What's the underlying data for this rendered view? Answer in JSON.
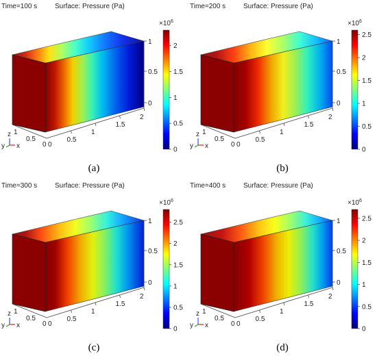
{
  "figure_title": "",
  "panels": [
    {
      "id": "a",
      "time_label": "Time=100 s",
      "surface_label": "Surface: Pressure (Pa)",
      "label": "(a)",
      "scale_exp": "×10",
      "scale_sup": "6",
      "cmax": 2.3,
      "cb_ticks": [
        "2",
        "1.5",
        "1",
        "0.5",
        "0"
      ],
      "cb_tick_vals": [
        2,
        1.5,
        1,
        0.5,
        0
      ],
      "front_color": "#8b0000",
      "profile": "a"
    },
    {
      "id": "b",
      "time_label": "Time=200 s",
      "surface_label": "Surface: Pressure (Pa)",
      "label": "(b)",
      "scale_exp": "×10",
      "scale_sup": "6",
      "cmax": 2.6,
      "cb_ticks": [
        "2.5",
        "2",
        "1.5",
        "1",
        "0.5",
        "0"
      ],
      "cb_tick_vals": [
        2.5,
        2,
        1.5,
        1,
        0.5,
        0
      ],
      "front_color": "#8b0000",
      "profile": "b"
    },
    {
      "id": "c",
      "time_label": "Time=300 s",
      "surface_label": "Surface: Pressure (Pa)",
      "label": "(c)",
      "scale_exp": "×10",
      "scale_sup": "6",
      "cmax": 2.8,
      "cb_ticks": [
        "2.5",
        "2",
        "1.5",
        "1",
        "0.5",
        "0"
      ],
      "cb_tick_vals": [
        2.5,
        2,
        1.5,
        1,
        0.5,
        0
      ],
      "front_color": "#8b0000",
      "profile": "c"
    },
    {
      "id": "d",
      "time_label": "Time=400 s",
      "surface_label": "Surface: Pressure (Pa)",
      "label": "(d)",
      "scale_exp": "×10",
      "scale_sup": "6",
      "cmax": 2.7,
      "cb_ticks": [
        "2.5",
        "2",
        "1.5",
        "1",
        "0.5",
        "0"
      ],
      "cb_tick_vals": [
        2.5,
        2,
        1.5,
        1,
        0.5,
        0
      ],
      "front_color": "#8b0000",
      "profile": "d"
    }
  ],
  "axes": {
    "x_ticks": [
      "0",
      "0.5",
      "1",
      "1.5",
      "2"
    ],
    "y_ticks": [
      "0",
      "0.5",
      "1"
    ],
    "z_ticks": [
      "0",
      "0.5",
      "1"
    ],
    "triad": {
      "z": "z",
      "y": "y",
      "x": "x"
    }
  },
  "colormap": [
    "#00007f",
    "#0000ff",
    "#007fff",
    "#00ffff",
    "#7fff7f",
    "#ffff00",
    "#ff7f00",
    "#ff0000",
    "#7f0000"
  ]
}
